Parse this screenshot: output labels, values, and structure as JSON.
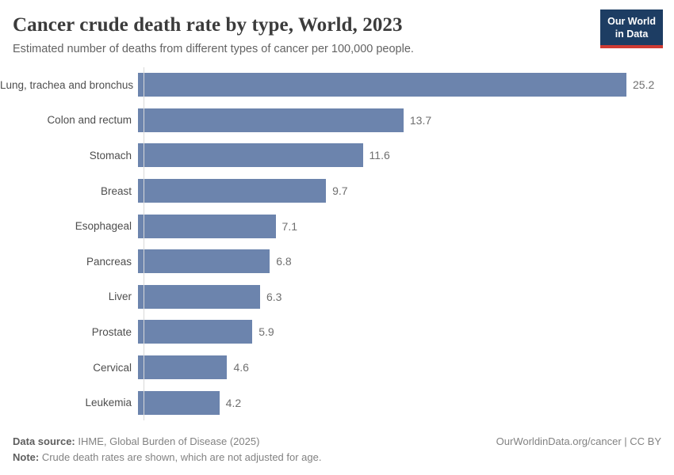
{
  "header": {
    "title": "Cancer crude death rate by type, World, 2023",
    "subtitle": "Estimated number of deaths from different types of cancer per 100,000 people.",
    "logo_line1": "Our World",
    "logo_line2": "in Data"
  },
  "chart_data": {
    "type": "bar",
    "orientation": "horizontal",
    "title": "Cancer crude death rate by type, World, 2023",
    "subtitle": "Estimated number of deaths from different types of cancer per 100,000 people.",
    "categories": [
      "Lung, trachea and bronchus",
      "Colon and rectum",
      "Stomach",
      "Breast",
      "Esophageal",
      "Pancreas",
      "Liver",
      "Prostate",
      "Cervical",
      "Leukemia"
    ],
    "values": [
      25.2,
      13.7,
      11.6,
      9.7,
      7.1,
      6.8,
      6.3,
      5.9,
      4.6,
      4.2
    ],
    "xlabel": "",
    "ylabel": "",
    "xlim": [
      0,
      25.2
    ],
    "grid": false,
    "legend": false,
    "bar_color": "#6c84ad",
    "value_label_color": "#6f6f6f",
    "category_label_color": "#4e4e4e"
  },
  "footer": {
    "source_label": "Data source:",
    "source_text": " IHME, Global Burden of Disease (2025)",
    "link_text": "OurWorldinData.org/cancer | CC BY",
    "note_label": "Note:",
    "note_text": " Crude death rates are shown, which are not adjusted for age."
  },
  "colors": {
    "bar": "#6c84ad",
    "logo_bg": "#1d3d63",
    "logo_accent": "#cf3b33",
    "axis_line": "#d9d9d9",
    "title_text": "#3b3b3b"
  }
}
